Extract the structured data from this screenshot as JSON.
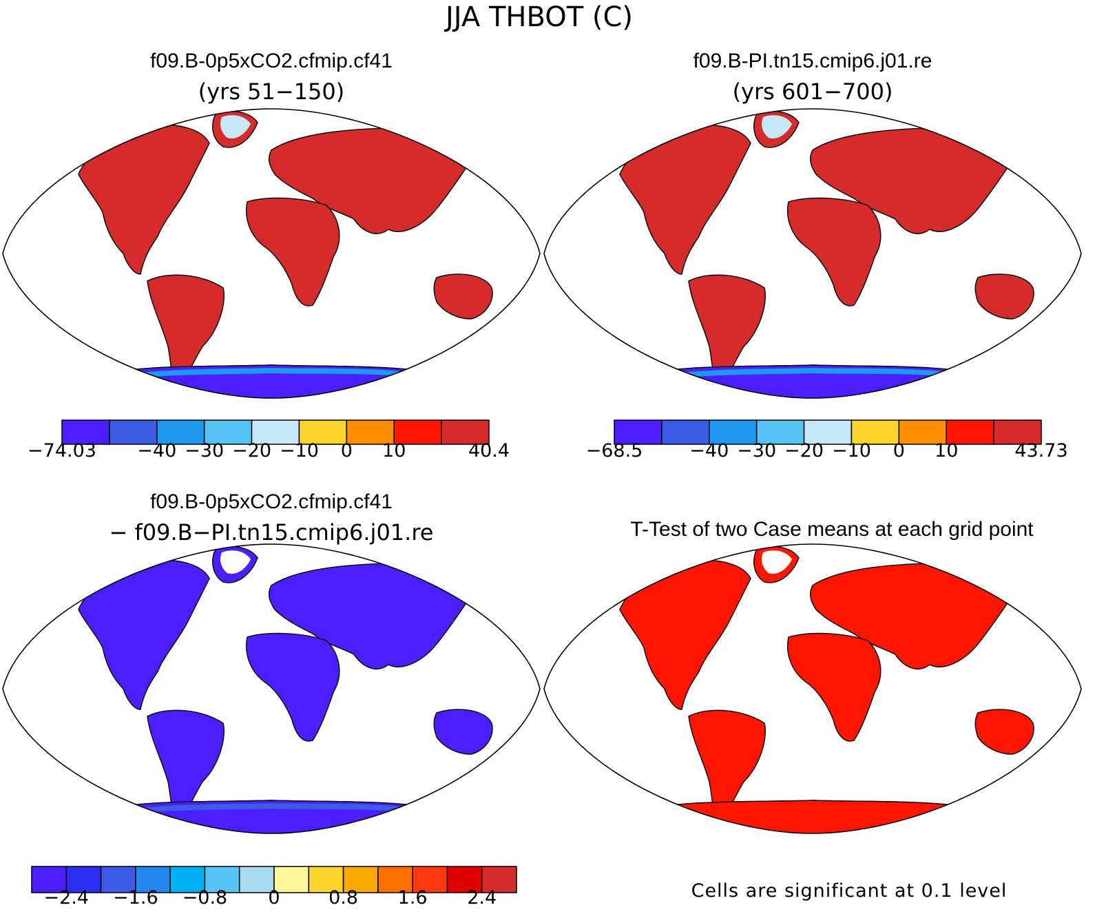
{
  "figure_title": "JJA THBOT (C)",
  "panels": [
    {
      "id": "case1",
      "title": "f09.B-0p5xCO2.cfmip.cf41",
      "subtitle": "(yrs 51−150)",
      "colorbar": {
        "colors": [
          "#4b1eff",
          "#3d5ce6",
          "#1f99f0",
          "#55c4f5",
          "#c6e8f8",
          "#fbd42c",
          "#ff8d00",
          "#ff1500",
          "#d62b2b"
        ],
        "labels": [
          "−74.03",
          "",
          "−40",
          "−30",
          "−20",
          "−10",
          "0",
          "10",
          "",
          "40.4"
        ]
      },
      "palette": {
        "ocean": "#ffffff",
        "tropics": "#d62b2b",
        "midlat": "#ff1500",
        "highlat": "#ff8d00",
        "arctic": "#fbd42c",
        "icecap": "#c6e8f8",
        "antarctic": "#4b1eff",
        "antarctic_edge": "#1f99f0"
      }
    },
    {
      "id": "case2",
      "title": "f09.B-PI.tn15.cmip6.j01.re",
      "subtitle": "(yrs 601−700)",
      "colorbar": {
        "colors": [
          "#4b1eff",
          "#3d5ce6",
          "#1f99f0",
          "#55c4f5",
          "#c6e8f8",
          "#fbd42c",
          "#ff8d00",
          "#ff1500",
          "#d62b2b"
        ],
        "labels": [
          "−68.5",
          "",
          "−40",
          "−30",
          "−20",
          "−10",
          "0",
          "10",
          "",
          "43.73"
        ]
      },
      "palette": {
        "ocean": "#ffffff",
        "tropics": "#d62b2b",
        "midlat": "#e8241d",
        "highlat": "#ff8d00",
        "arctic": "#fbd42c",
        "icecap": "#c6e8f8",
        "antarctic": "#4b1eff",
        "antarctic_edge": "#1f99f0"
      }
    },
    {
      "id": "diff",
      "title": "f09.B-0p5xCO2.cfmip.cf41",
      "subtitle": "− f09.B−PI.tn15.cmip6.j01.re",
      "colorbar": {
        "colors": [
          "#4b1eff",
          "#2a2ff2",
          "#3d5ce6",
          "#2288ee",
          "#00b0f5",
          "#55c4f5",
          "#a8daf2",
          "#fff59a",
          "#fbd42c",
          "#f8a800",
          "#ff7000",
          "#ff3a10",
          "#e00000",
          "#d62b2b"
        ],
        "labels": [
          "",
          "−2.4",
          "",
          "−1.6",
          "",
          "−0.8",
          "",
          "0",
          "",
          "0.8",
          "",
          "1.6",
          "",
          "2.4",
          ""
        ]
      },
      "palette": {
        "ocean": "#ffffff",
        "tropics": "#4b1eff",
        "midlat": "#4b1eff",
        "highlat": "#4b1eff",
        "arctic": "#4b1eff",
        "icecap": "#ffffff",
        "antarctic": "#4b1eff",
        "antarctic_edge": "#3d5ce6"
      }
    },
    {
      "id": "ttest",
      "title": "T-Test of two Case means at each grid point",
      "subtitle": "",
      "note": "Cells are significant at 0.1 level",
      "palette": {
        "ocean": "#ffffff",
        "tropics": "#ff1500",
        "midlat": "#ff1500",
        "highlat": "#ff1500",
        "arctic": "#ff1500",
        "icecap": "#ffffff",
        "antarctic": "#ff1500",
        "antarctic_edge": "#ff1500"
      }
    }
  ]
}
